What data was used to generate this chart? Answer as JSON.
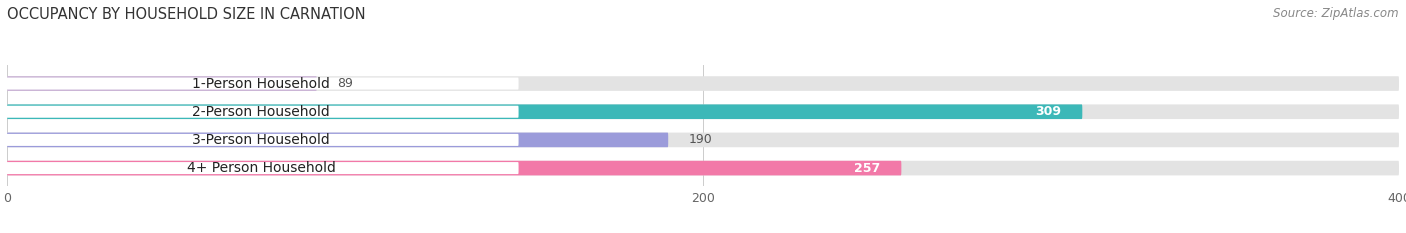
{
  "title": "OCCUPANCY BY HOUSEHOLD SIZE IN CARNATION",
  "source": "Source: ZipAtlas.com",
  "categories": [
    "1-Person Household",
    "2-Person Household",
    "3-Person Household",
    "4+ Person Household"
  ],
  "values": [
    89,
    309,
    190,
    257
  ],
  "bar_colors": [
    "#c8afd4",
    "#3cb8b8",
    "#9b9bda",
    "#f279a8"
  ],
  "bar_bg_color": "#e8e8e8",
  "xlim": [
    0,
    400
  ],
  "xticks": [
    0,
    200,
    400
  ],
  "figsize": [
    14.06,
    2.33
  ],
  "dpi": 100,
  "title_fontsize": 10.5,
  "label_fontsize": 10,
  "value_fontsize": 9,
  "source_fontsize": 8.5,
  "value_inside_color": "white",
  "value_outside_color": "#555555",
  "inside_threshold": 200
}
